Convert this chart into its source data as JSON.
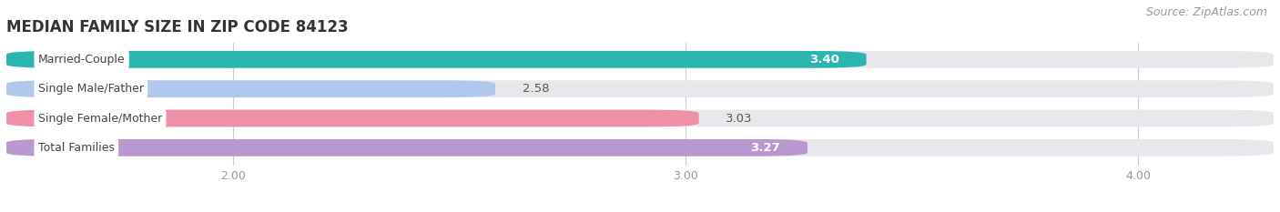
{
  "title": "MEDIAN FAMILY SIZE IN ZIP CODE 84123",
  "source": "Source: ZipAtlas.com",
  "categories": [
    "Married-Couple",
    "Single Male/Father",
    "Single Female/Mother",
    "Total Families"
  ],
  "values": [
    3.4,
    2.58,
    3.03,
    3.27
  ],
  "bar_colors": [
    "#2ab5b0",
    "#b0c8ec",
    "#f090a8",
    "#b898d0"
  ],
  "bar_bg_color": "#e8e8ec",
  "xlim": [
    1.5,
    4.3
  ],
  "xticks": [
    2.0,
    3.0,
    4.0
  ],
  "xtick_labels": [
    "2.00",
    "3.00",
    "4.00"
  ],
  "title_fontsize": 12,
  "source_fontsize": 9,
  "bar_label_fontsize": 9.5,
  "category_fontsize": 9,
  "tick_fontsize": 9,
  "background_color": "#ffffff",
  "value_colors": [
    "#ffffff",
    "#555555",
    "#555555",
    "#ffffff"
  ]
}
